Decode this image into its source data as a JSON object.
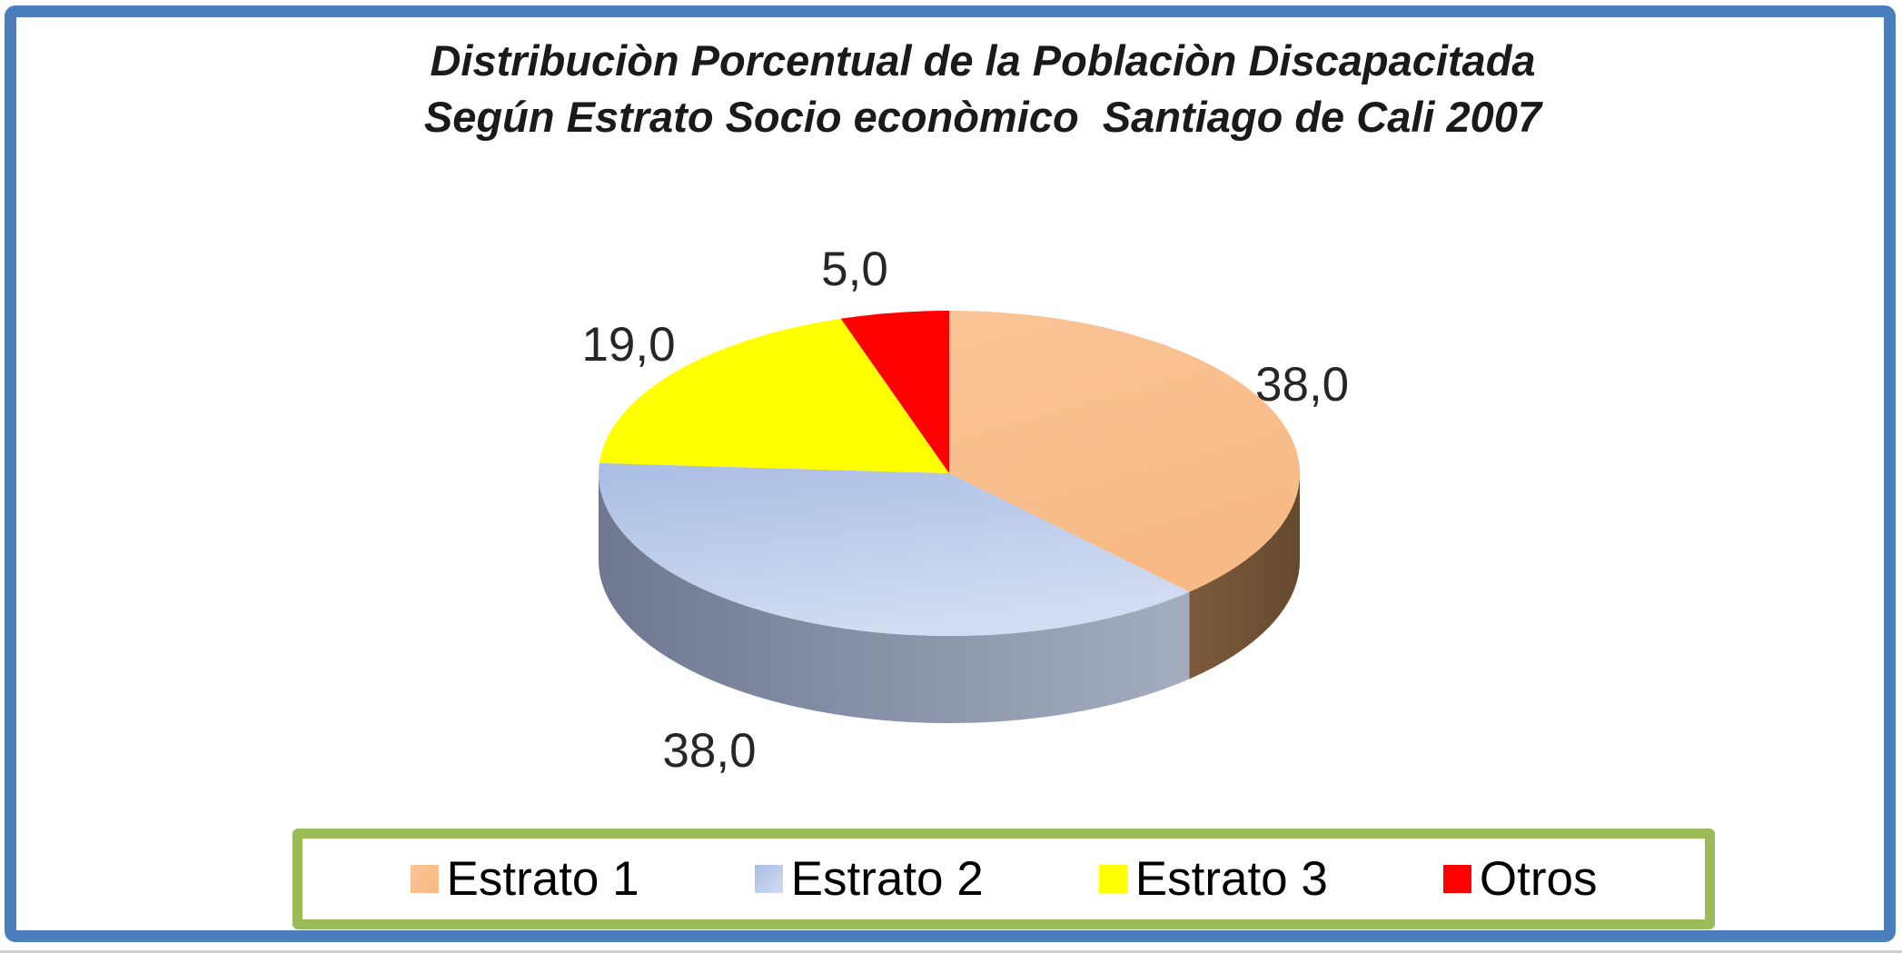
{
  "page": {
    "background": "#FFFFFF",
    "frame_border_color": "#4A7EBD",
    "legend_border_color": "#9BBB59",
    "title_color": "#1A1A1A",
    "label_color": "#262626"
  },
  "title": {
    "line1": "Distribuciòn Porcentual de la Poblaciòn Discapacitada",
    "line2": "Según Estrato Socio econòmico  Santiago de Cali 2007"
  },
  "chart_data": {
    "type": "pie",
    "style": "3d-pie",
    "title": "Distribuciòn Porcentual de la Poblaciòn Discapacitada Según Estrato Socio econòmico  Santiago de Cali 2007",
    "categories": [
      "Estrato 1",
      "Estrato 2",
      "Estrato 3",
      "Otros"
    ],
    "values": [
      38.0,
      38.0,
      19.0,
      5.0
    ],
    "start_angle_clockwise_from_top_deg": 0,
    "direction": "clockwise",
    "legend_position": "bottom",
    "slices": [
      {
        "label": "Estrato 1",
        "value": 38.0,
        "value_label": "38,0",
        "color": "#FBC495",
        "color2": "#F7BA86",
        "side": [
          "#7D5B3C",
          "#66492E"
        ]
      },
      {
        "label": "Estrato 2",
        "value": 38.0,
        "value_label": "38,0",
        "color": "#A9BDE3",
        "color2": "#D2DCF2",
        "side": [
          "#6E7890",
          "#A4ADC0"
        ]
      },
      {
        "label": "Estrato 3",
        "value": 19.0,
        "value_label": "19,0",
        "color": "#FFFF00"
      },
      {
        "label": "Otros",
        "value": 5.0,
        "value_label": "5,0",
        "color": "#FF0000"
      }
    ]
  }
}
